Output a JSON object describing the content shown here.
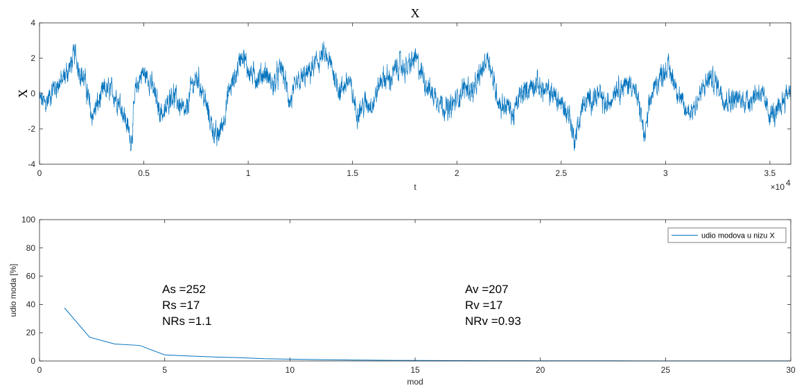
{
  "chart_data": [
    {
      "type": "line",
      "title": "X",
      "xlabel": "t",
      "ylabel": "X",
      "x_exponent_label": "×10",
      "x_exponent_power": "4",
      "xlim": [
        0,
        36000
      ],
      "ylim": [
        -4,
        4
      ],
      "xticks": [
        0,
        5000,
        10000,
        15000,
        20000,
        25000,
        30000,
        35000
      ],
      "xtick_labels": [
        "0",
        "0.5",
        "1",
        "1.5",
        "2",
        "2.5",
        "3",
        "3.5"
      ],
      "yticks": [
        -4,
        -2,
        0,
        2,
        4
      ],
      "ytick_labels": [
        "-4",
        "-2",
        "0",
        "2",
        "4"
      ],
      "grid": false,
      "series_color": "#0072BD",
      "envelope": {
        "x": [
          0,
          300,
          700,
          1100,
          1500,
          1700,
          1900,
          2200,
          2500,
          2800,
          3100,
          3500,
          3900,
          4200,
          4400,
          4600,
          4900,
          5300,
          5700,
          6000,
          6300,
          6700,
          7000,
          7300,
          7600,
          7900,
          8200,
          8500,
          8800,
          9100,
          9400,
          9700,
          9900,
          10200,
          10500,
          10800,
          11200,
          11600,
          12000,
          12400,
          12800,
          13200,
          13600,
          14000,
          14400,
          14800,
          15200,
          15600,
          16000,
          16400,
          16800,
          17200,
          17600,
          18000,
          18400,
          18800,
          19200,
          19600,
          20000,
          20400,
          20800,
          21200,
          21500,
          21800,
          22100,
          22400,
          22700,
          23000,
          23400,
          23800,
          24200,
          24600,
          25000,
          25400,
          25600,
          25800,
          26000,
          26400,
          26800,
          27200,
          27600,
          28000,
          28400,
          28800,
          29000,
          29300,
          29700,
          30100,
          30500,
          30900,
          31300,
          31700,
          32100,
          32500,
          32900,
          33300,
          33700,
          34100,
          34500,
          34900,
          35300,
          35700,
          36000
        ],
        "y": [
          -0.3,
          -0.6,
          0.4,
          0.7,
          1.6,
          2.3,
          1.4,
          0.6,
          -1.3,
          -0.6,
          0.2,
          0.1,
          -0.6,
          -1.8,
          -2.7,
          0.1,
          1.2,
          0.8,
          -0.8,
          -1.2,
          0.1,
          -0.6,
          -1.3,
          0.5,
          0.9,
          -0.3,
          -1.6,
          -2.6,
          -1.6,
          0.2,
          1.0,
          2.4,
          1.6,
          1.0,
          0.9,
          1.2,
          0.4,
          1.5,
          -0.5,
          0.6,
          1.0,
          1.6,
          2.2,
          1.5,
          0.1,
          0.8,
          -1.0,
          -0.6,
          -0.5,
          0.9,
          0.8,
          1.6,
          1.4,
          2.0,
          0.9,
          0.0,
          -0.4,
          -1.0,
          -0.3,
          0.4,
          0.1,
          1.3,
          2.2,
          0.4,
          -0.7,
          -0.6,
          -1.3,
          -0.2,
          0.3,
          0.6,
          0.1,
          0.0,
          -0.6,
          -1.2,
          -2.6,
          -1.9,
          -0.8,
          -0.3,
          -0.1,
          -0.8,
          0.4,
          0.4,
          0.6,
          -1.0,
          -2.6,
          -0.2,
          0.9,
          1.5,
          0.5,
          -1.0,
          -0.9,
          0.0,
          0.9,
          0.5,
          -0.4,
          -0.3,
          -0.4,
          -0.3,
          0.2,
          -1.0,
          -1.3,
          -0.2,
          0.3
        ]
      }
    },
    {
      "type": "line",
      "title": "",
      "xlabel": "mod",
      "ylabel": "udio moda [%]",
      "xlim": [
        0,
        30
      ],
      "ylim": [
        0,
        100
      ],
      "xticks": [
        0,
        5,
        10,
        15,
        20,
        25,
        30
      ],
      "yticks": [
        0,
        20,
        40,
        60,
        80,
        100
      ],
      "grid": false,
      "legend_location": "top-right",
      "series": [
        {
          "name": "udio modova u nizu X",
          "color": "#0072BD",
          "x": [
            1,
            2,
            3,
            4,
            5,
            6,
            7,
            8,
            9,
            10,
            11,
            12,
            13,
            14,
            15,
            16,
            17,
            18,
            19,
            20,
            21,
            22,
            23,
            24,
            25,
            26,
            27,
            28,
            29,
            30
          ],
          "values": [
            37.5,
            16.8,
            12.0,
            11.0,
            4.3,
            3.5,
            2.8,
            2.3,
            1.6,
            1.3,
            1.0,
            0.8,
            0.6,
            0.45,
            0.35,
            0.3,
            0.25,
            0.2,
            0.18,
            0.15,
            0.13,
            0.11,
            0.1,
            0.09,
            0.08,
            0.07,
            0.06,
            0.05,
            0.05,
            0.04
          ]
        }
      ],
      "annotations": {
        "left": [
          "As =252",
          "Rs =17",
          "NRs =1.1"
        ],
        "right": [
          "Av =207",
          "Rv =17",
          "NRv =0.93"
        ]
      }
    }
  ]
}
